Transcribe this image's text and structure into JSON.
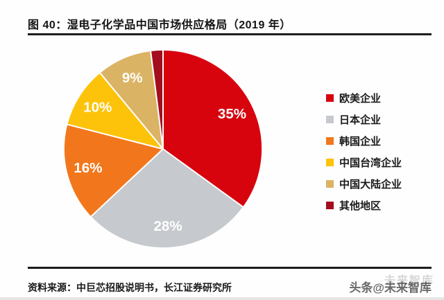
{
  "header": {
    "title": "图 40：湿电子化学品中国市场供应格局（2019 年）"
  },
  "chart_data": {
    "type": "pie",
    "title": "湿电子化学品中国市场供应格局（2019 年）",
    "direction": "clockwise",
    "start_angle_deg": 0,
    "legend_position": "right",
    "data_label_color": "#FFFFFF",
    "slices": [
      {
        "label": "欧美企业",
        "value": 35,
        "pct_label": "35%",
        "color": "#D7040E"
      },
      {
        "label": "日本企业",
        "value": 28,
        "pct_label": "28%",
        "color": "#C6C9CD"
      },
      {
        "label": "韩国企业",
        "value": 16,
        "pct_label": "16%",
        "color": "#F2771C"
      },
      {
        "label": "中国台湾企业",
        "value": 10,
        "pct_label": "10%",
        "color": "#FDC30A"
      },
      {
        "label": "中国大陆企业",
        "value": 9,
        "pct_label": "9%",
        "color": "#DBB365"
      },
      {
        "label": "其他地区",
        "value": 2,
        "pct_label": "",
        "color": "#A30D1D"
      }
    ]
  },
  "footer": {
    "source": "资料来源：中巨芯招股说明书，长江证券研究所",
    "watermark": "头条@未来智库",
    "watermark_ghost": "未来智库"
  }
}
